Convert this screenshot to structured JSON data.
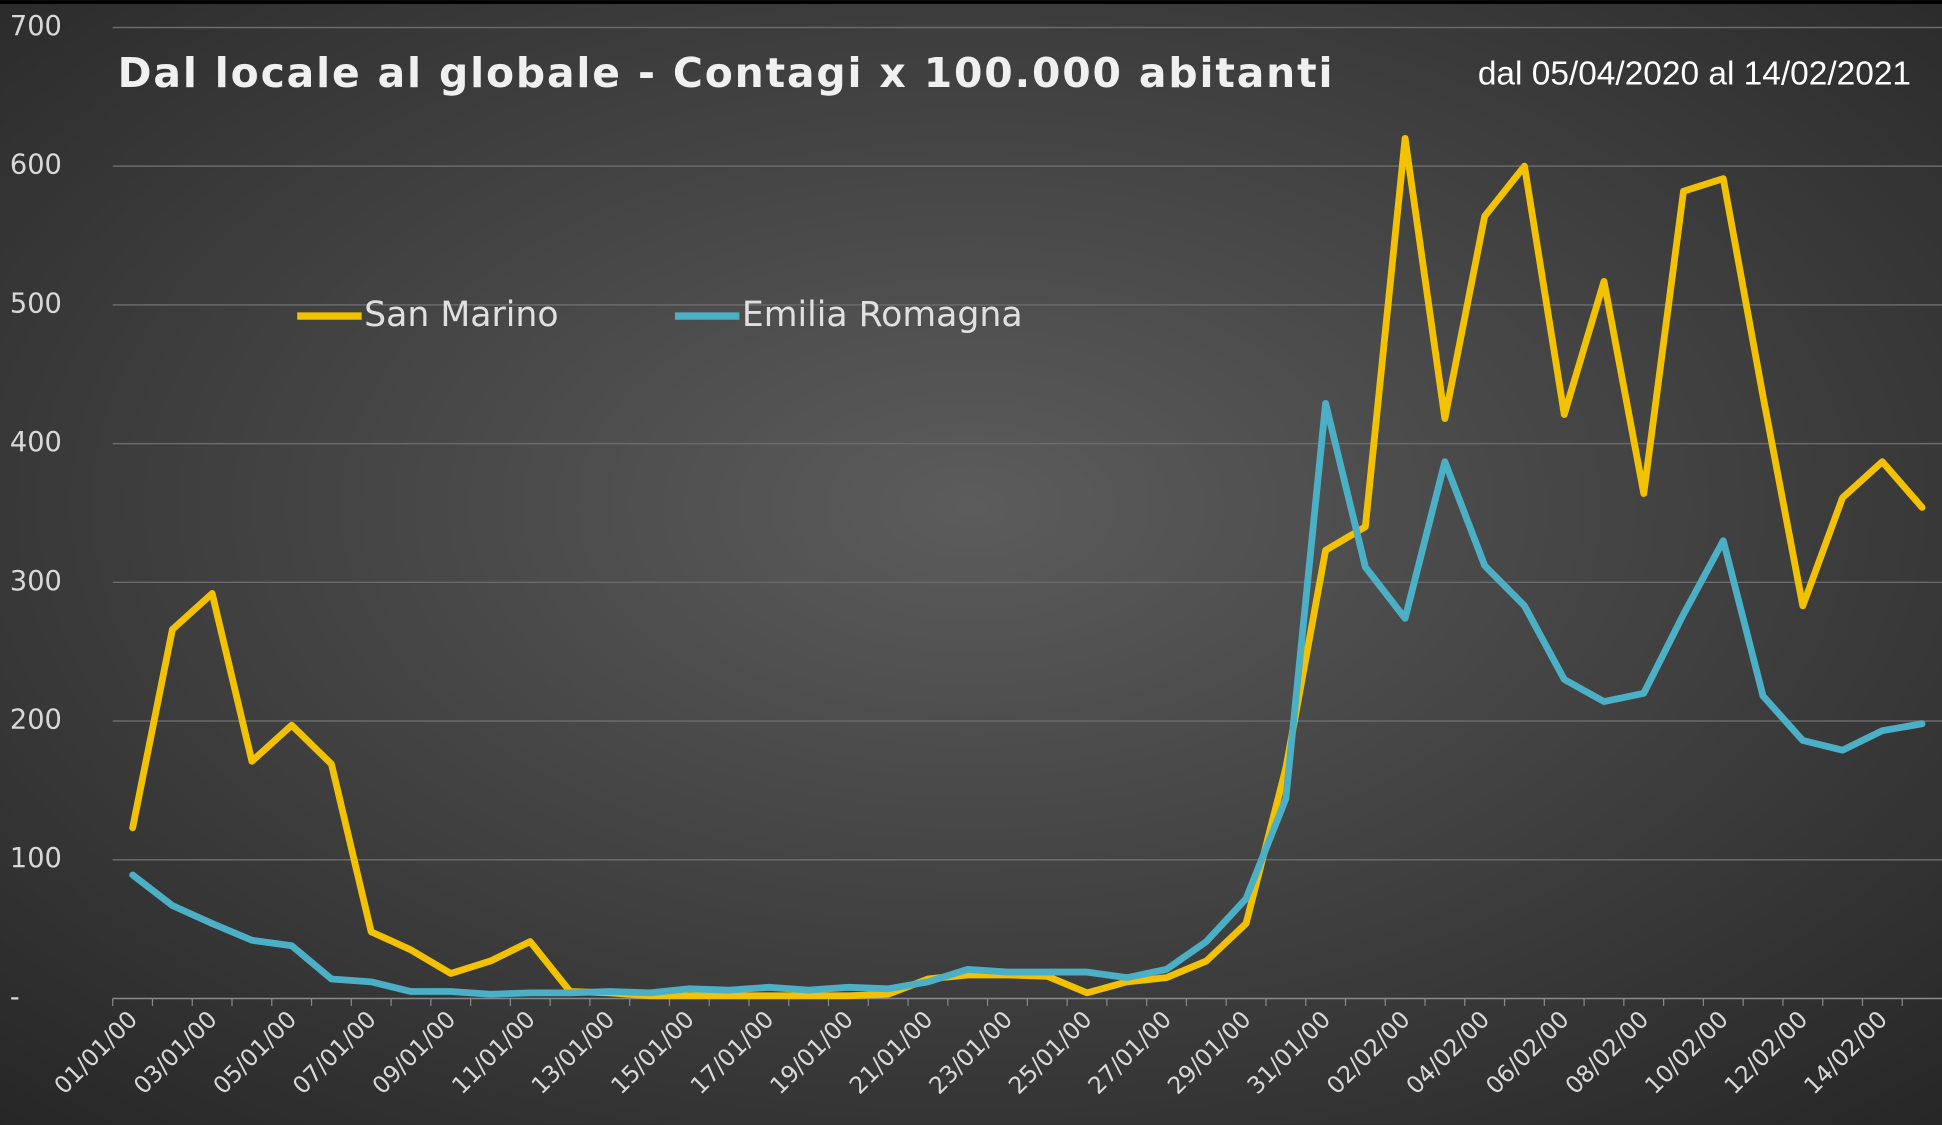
{
  "chart_data": {
    "type": "line",
    "title": "Dal locale al globale - Contagi x 100.000 abitanti",
    "subtitle": "dal 05/04/2020 al 14/02/2021",
    "categories": [
      "01/01/00",
      null,
      "03/01/00",
      null,
      "05/01/00",
      null,
      "07/01/00",
      null,
      "09/01/00",
      null,
      "11/01/00",
      null,
      "13/01/00",
      null,
      "15/01/00",
      null,
      "17/01/00",
      null,
      "19/01/00",
      null,
      "21/01/00",
      null,
      "23/01/00",
      null,
      "25/01/00",
      null,
      "27/01/00",
      null,
      "29/01/00",
      null,
      "31/01/00",
      null,
      "02/02/00",
      null,
      "04/02/00",
      null,
      "06/02/00",
      null,
      "08/02/00",
      null,
      "10/02/00",
      null,
      "12/02/00",
      null,
      "14/02/00",
      null
    ],
    "series": [
      {
        "name": "San Marino",
        "color": "#f2c200",
        "values": [
          123,
          266,
          292,
          171,
          197,
          169,
          48,
          35,
          18,
          27,
          41,
          5,
          4,
          2,
          2,
          2,
          2,
          2,
          2,
          3,
          14,
          17,
          17,
          16,
          4,
          12,
          15,
          27,
          54,
          166,
          323,
          340,
          620,
          418,
          564,
          600,
          421,
          517,
          364,
          582,
          591,
          434,
          283,
          361,
          387,
          354
        ]
      },
      {
        "name": "Emilia Romagna",
        "color": "#4bb0c6",
        "values": [
          89,
          67,
          54,
          42,
          38,
          14,
          12,
          5,
          5,
          3,
          4,
          4,
          5,
          4,
          7,
          6,
          8,
          6,
          8,
          7,
          12,
          21,
          19,
          19,
          19,
          15,
          21,
          41,
          72,
          144,
          429,
          311,
          274,
          387,
          312,
          283,
          230,
          214,
          220,
          277,
          330,
          218,
          186,
          179,
          193,
          198
        ]
      }
    ],
    "ylim": [
      0,
      700
    ],
    "yticks": [
      {
        "value": 0,
        "label": "-"
      },
      100,
      200,
      300,
      400,
      500,
      600,
      700
    ],
    "grid": true,
    "legend": "top-left"
  }
}
